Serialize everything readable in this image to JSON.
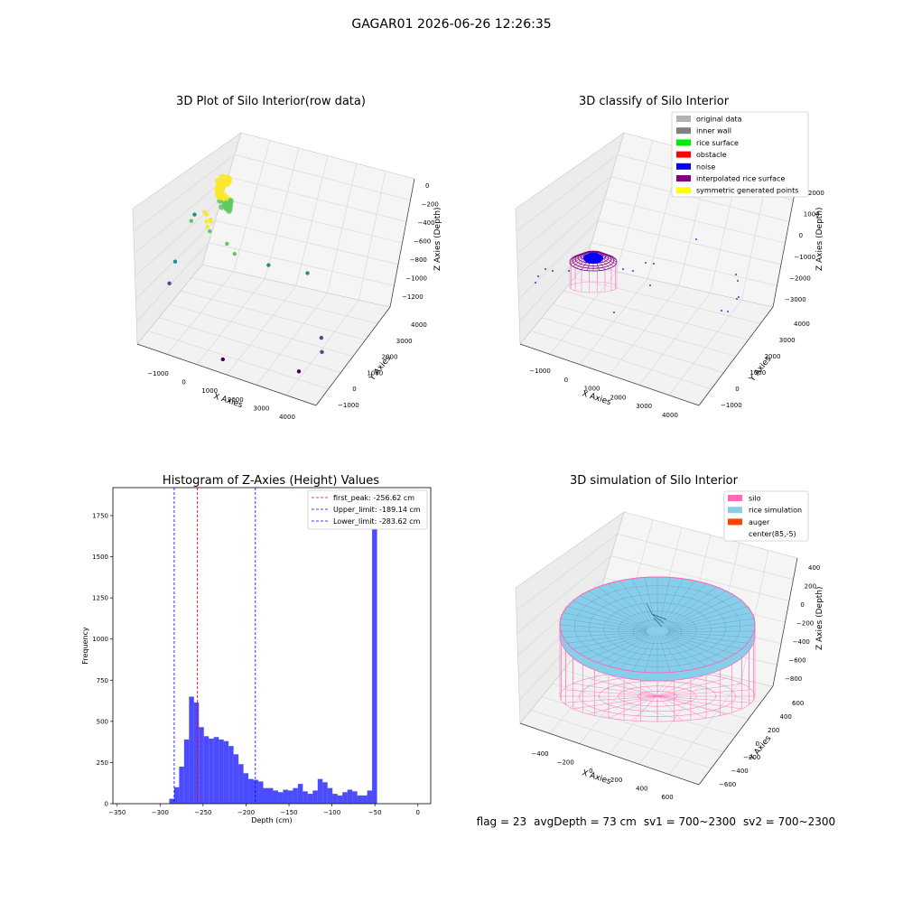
{
  "suptitle": "GAGAR01 2026-06-26 12:26:35",
  "chart_data": [
    {
      "panel": "raw",
      "type": "scatter",
      "title": "3D Plot of Silo Interior(row data)",
      "xlabel": "X Axies",
      "ylabel": "Y Axies",
      "zlabel": "Z Axies (Depth)",
      "x_ticks": [
        "−1000",
        "0",
        "1000",
        "2000",
        "3000",
        "4000"
      ],
      "y_ticks": [
        "−1000",
        "0",
        "1000",
        "2000",
        "3000",
        "4000"
      ],
      "z_ticks": [
        "−1200",
        "−1000",
        "−800",
        "−600",
        "−400",
        "−200",
        "0"
      ],
      "colormap": "viridis",
      "points": [
        {
          "x": -100,
          "y": 800,
          "z": -150
        },
        {
          "x": -50,
          "y": 850,
          "z": -180
        },
        {
          "x": 0,
          "y": 700,
          "z": -220
        },
        {
          "x": 50,
          "y": 900,
          "z": -250
        },
        {
          "x": 100,
          "y": 760,
          "z": -200
        },
        {
          "x": -20,
          "y": 820,
          "z": -300
        },
        {
          "x": 30,
          "y": 880,
          "z": -350
        },
        {
          "x": 600,
          "y": 800,
          "z": -400
        },
        {
          "x": 800,
          "y": 900,
          "z": -500
        },
        {
          "x": -800,
          "y": 1500,
          "z": -450
        },
        {
          "x": -900,
          "y": 500,
          "z": -700
        },
        {
          "x": -1000,
          "y": 300,
          "z": -900
        },
        {
          "x": 1500,
          "y": 1800,
          "z": -700
        },
        {
          "x": 2800,
          "y": 1600,
          "z": -600
        },
        {
          "x": 3800,
          "y": 200,
          "z": -900
        },
        {
          "x": 3900,
          "y": 0,
          "z": -1000
        },
        {
          "x": 3500,
          "y": -800,
          "z": -1100
        },
        {
          "x": 1200,
          "y": -1000,
          "z": -1200
        },
        {
          "x": -1100,
          "y": 2500,
          "z": -600
        }
      ]
    },
    {
      "panel": "classify",
      "type": "scatter",
      "title": "3D classify of Silo Interior",
      "xlabel": "X Axies",
      "ylabel": "Y Axies",
      "zlabel": "Z Axies (Depth)",
      "x_ticks": [
        "−1000",
        "0",
        "1000",
        "2000",
        "3000",
        "4000"
      ],
      "y_ticks": [
        "−1000",
        "0",
        "1000",
        "2000",
        "3000",
        "4000"
      ],
      "z_ticks": [
        "−3000",
        "−2000",
        "−1000",
        "0",
        "1000",
        "2000"
      ],
      "legend": [
        {
          "label": "original data",
          "color": "#b3b3b3"
        },
        {
          "label": "inner wall",
          "color": "#808080"
        },
        {
          "label": "rice surface",
          "color": "#00ee00"
        },
        {
          "label": "obstacle",
          "color": "#ff0000"
        },
        {
          "label": "noise",
          "color": "#0000ff"
        },
        {
          "label": "interpolated rice surface",
          "color": "#800080"
        },
        {
          "label": "symmetric generated points",
          "color": "#ffff00"
        }
      ]
    },
    {
      "panel": "histogram",
      "type": "bar",
      "title": "Histogram of Z-Axies (Height) Values",
      "xlabel": "Depth (cm)",
      "ylabel": "Frequency",
      "xlim": [
        -355,
        15
      ],
      "ylim": [
        0,
        1920
      ],
      "x_ticks": [
        -350,
        -300,
        -250,
        -200,
        -150,
        -100,
        -50,
        0
      ],
      "x_tick_labels": [
        "−350",
        "−300",
        "−250",
        "−200",
        "−150",
        "−100",
        "−50",
        "0"
      ],
      "y_ticks": [
        0,
        250,
        500,
        750,
        1000,
        1250,
        1500,
        1750
      ],
      "y_tick_labels": [
        "0",
        "250",
        "500",
        "750",
        "1000",
        "1250",
        "1500",
        "1750"
      ],
      "bin_start": -289.4,
      "bin_width": 5.76,
      "values": [
        30,
        100,
        225,
        390,
        650,
        615,
        465,
        410,
        395,
        405,
        390,
        380,
        350,
        300,
        240,
        185,
        150,
        145,
        135,
        95,
        95,
        80,
        70,
        85,
        80,
        95,
        120,
        75,
        60,
        80,
        150,
        130,
        95,
        60,
        50,
        70,
        85,
        75,
        50,
        50,
        80,
        1840
      ],
      "bar_color": "#0000ff",
      "vlines": [
        {
          "label": "first_peak: -256.62 cm",
          "x": -256.62,
          "color": "#ff0000"
        },
        {
          "label": "Upper_limit: -189.14 cm",
          "x": -189.14,
          "color": "#0000ff"
        },
        {
          "label": "Lower_limit: -283.62 cm",
          "x": -283.62,
          "color": "#0000ff"
        }
      ]
    },
    {
      "panel": "simulation",
      "type": "surface",
      "title": "3D simulation of Silo Interior",
      "xlabel": "X Axies",
      "ylabel": "Y Axies",
      "zlabel": "Z Axies (Depth)",
      "x_ticks": [
        "−400",
        "−200",
        "0",
        "200",
        "400",
        "600"
      ],
      "y_ticks": [
        "−600",
        "−400",
        "−200",
        "0",
        "200",
        "400",
        "600"
      ],
      "z_ticks": [
        "−800",
        "−600",
        "−400",
        "−200",
        "0",
        "200",
        "400"
      ],
      "legend": [
        {
          "label": "silo",
          "color": "#ff69b4"
        },
        {
          "label": "rice simulation",
          "color": "#87ceeb"
        },
        {
          "label": "auger",
          "color": "#ff4500"
        },
        {
          "label": "center(85,-5)",
          "color": "#ffffff"
        }
      ]
    }
  ],
  "footer": {
    "flag": "flag = 23",
    "avg_depth": "avgDepth = 73 cm",
    "sv1": "sv1 = 700~2300",
    "sv2": "sv2 = 700~2300"
  }
}
